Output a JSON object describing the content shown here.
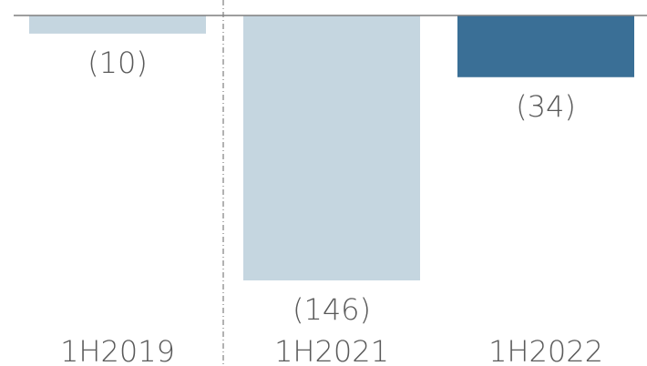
{
  "chart_data": {
    "type": "bar",
    "categories": [
      "1H2019",
      "1H2021",
      "1H2022"
    ],
    "values": [
      -10,
      -146,
      -34
    ],
    "value_labels": [
      "(10)",
      "(146)",
      "(34)"
    ],
    "colors": [
      "#c5d6e0",
      "#c5d6e0",
      "#3a6f96"
    ]
  }
}
